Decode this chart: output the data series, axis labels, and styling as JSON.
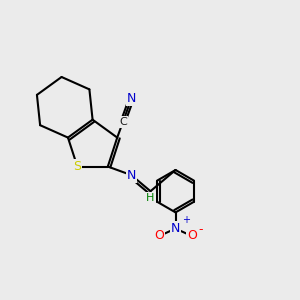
{
  "background_color": "#ebebeb",
  "bond_color": "#000000",
  "atom_colors": {
    "N": "#0000cc",
    "S": "#cccc00",
    "O": "#ff0000",
    "C": "#1a1a1a",
    "H": "#008000"
  },
  "figsize": [
    3.0,
    3.0
  ],
  "dpi": 100
}
